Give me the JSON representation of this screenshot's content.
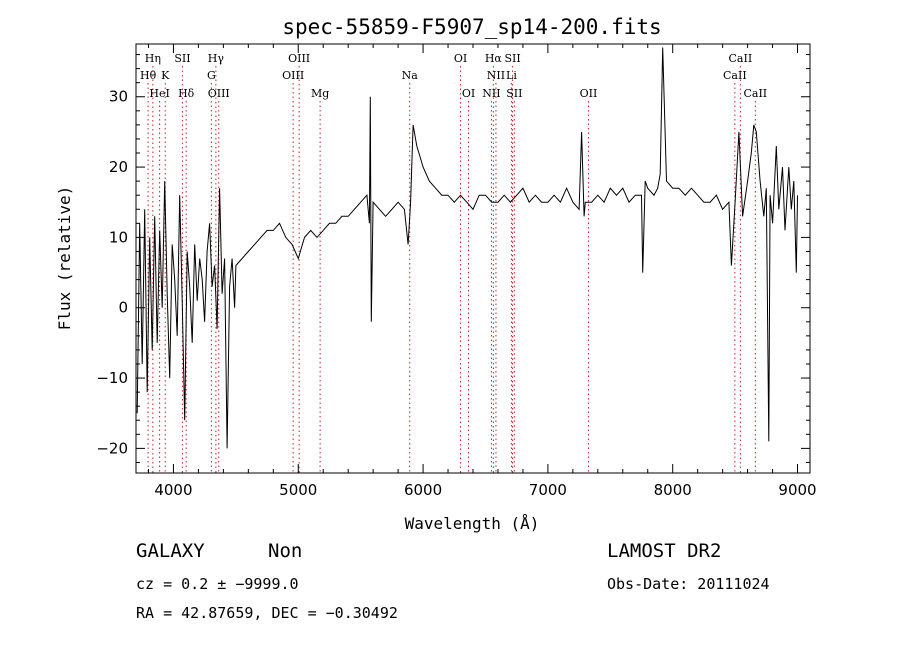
{
  "chart_data": {
    "type": "line",
    "title": "spec-55859-F5907_sp14-200.fits",
    "xlabel": "Wavelength (Å)",
    "ylabel": "Flux (relative)",
    "xlim": [
      3700,
      9100
    ],
    "ylim": [
      -23.5,
      37.5
    ],
    "xticks": [
      "4000",
      "5000",
      "6000",
      "7000",
      "8000",
      "9000"
    ],
    "yticks": [
      "−20",
      "−10",
      "0",
      "10",
      "20",
      "30"
    ],
    "grid": false,
    "line_color": "#000000",
    "marker_color": "#cc2222",
    "spectrum": {
      "x": [
        3710,
        3730,
        3750,
        3770,
        3790,
        3810,
        3830,
        3850,
        3870,
        3890,
        3910,
        3930,
        3950,
        3970,
        3990,
        4010,
        4030,
        4050,
        4070,
        4090,
        4110,
        4130,
        4150,
        4170,
        4190,
        4210,
        4230,
        4250,
        4270,
        4290,
        4310,
        4330,
        4350,
        4370,
        4390,
        4410,
        4430,
        4450,
        4470,
        4490,
        4500,
        4550,
        4600,
        4650,
        4700,
        4750,
        4800,
        4850,
        4900,
        4950,
        5000,
        5050,
        5100,
        5150,
        5200,
        5250,
        5300,
        5350,
        5400,
        5450,
        5500,
        5550,
        5570,
        5577,
        5585,
        5600,
        5650,
        5700,
        5750,
        5800,
        5850,
        5880,
        5900,
        5920,
        5950,
        6000,
        6050,
        6100,
        6150,
        6200,
        6250,
        6300,
        6350,
        6400,
        6450,
        6500,
        6550,
        6600,
        6650,
        6700,
        6750,
        6800,
        6850,
        6900,
        6950,
        7000,
        7050,
        7100,
        7150,
        7200,
        7250,
        7270,
        7290,
        7300,
        7350,
        7400,
        7450,
        7500,
        7550,
        7600,
        7650,
        7700,
        7750,
        7760,
        7780,
        7800,
        7850,
        7880,
        7900,
        7920,
        7950,
        8000,
        8050,
        8100,
        8150,
        8200,
        8250,
        8300,
        8350,
        8400,
        8450,
        8470,
        8500,
        8530,
        8560,
        8600,
        8630,
        8650,
        8670,
        8700,
        8730,
        8750,
        8770,
        8780,
        8800,
        8830,
        8850,
        8880,
        8900,
        8930,
        8950,
        8970,
        8990,
        9000
      ],
      "y": [
        -15,
        12,
        -8,
        14,
        -12,
        10,
        -6,
        13,
        -5,
        11,
        0,
        18,
        2,
        -10,
        9,
        4,
        -4,
        16,
        1,
        -16,
        8,
        3,
        -5,
        9,
        1,
        7,
        4,
        -2,
        8,
        12,
        3,
        6,
        -3,
        17,
        2,
        7,
        -20,
        3,
        7,
        0,
        6,
        7,
        8,
        9,
        10,
        11,
        11,
        12,
        10,
        9,
        7,
        10,
        11,
        10,
        11,
        12,
        12,
        13,
        13,
        14,
        15,
        16,
        12,
        30,
        -2,
        15,
        14,
        13,
        14,
        15,
        14,
        9,
        15,
        26,
        23,
        20,
        18,
        17,
        16,
        16,
        15,
        16,
        15,
        14,
        16,
        16,
        15,
        15,
        16,
        15,
        16,
        17,
        15,
        16,
        15,
        15,
        16,
        15,
        17,
        15,
        14,
        25,
        13,
        15,
        15,
        16,
        15,
        17,
        16,
        17,
        15,
        16,
        16,
        5,
        18,
        17,
        16,
        17,
        19,
        37,
        18,
        17,
        17,
        16,
        17,
        16,
        15,
        15,
        16,
        14,
        15,
        6,
        15,
        25,
        13,
        18,
        22,
        26,
        25,
        18,
        13,
        17,
        -19,
        16,
        12,
        23,
        14,
        20,
        11,
        20,
        14,
        18,
        5,
        16
      ]
    },
    "line_markers": [
      {
        "name": "Hη",
        "wavelength": 3835,
        "row": 0
      },
      {
        "name": "Hθ",
        "wavelength": 3797,
        "row": 1
      },
      {
        "name": "HeI",
        "wavelength": 3889,
        "row": 2
      },
      {
        "name": "K",
        "wavelength": 3934,
        "row": 1
      },
      {
        "name": "SII",
        "wavelength": 4072,
        "row": 0
      },
      {
        "name": "Hδ",
        "wavelength": 4102,
        "row": 2
      },
      {
        "name": "Hγ",
        "wavelength": 4340,
        "row": 0
      },
      {
        "name": "G",
        "wavelength": 4304,
        "row": 1
      },
      {
        "name": "OIII",
        "wavelength": 4363,
        "row": 2
      },
      {
        "name": "OIII",
        "wavelength": 5007,
        "row": 0
      },
      {
        "name": "OIII",
        "wavelength": 4959,
        "row": 1
      },
      {
        "name": "Mg",
        "wavelength": 5175,
        "row": 2
      },
      {
        "name": "Na",
        "wavelength": 5893,
        "row": 1
      },
      {
        "name": "OI",
        "wavelength": 6300,
        "row": 0
      },
      {
        "name": "OI",
        "wavelength": 6364,
        "row": 2
      },
      {
        "name": "Hα",
        "wavelength": 6563,
        "row": 0
      },
      {
        "name": "SII",
        "wavelength": 6717,
        "row": 0
      },
      {
        "name": "NII",
        "wavelength": 6584,
        "row": 1
      },
      {
        "name": "Li",
        "wavelength": 6708,
        "row": 1
      },
      {
        "name": "NII",
        "wavelength": 6548,
        "row": 2
      },
      {
        "name": "SII",
        "wavelength": 6731,
        "row": 2
      },
      {
        "name": "OII",
        "wavelength": 7325,
        "row": 2
      },
      {
        "name": "CaII",
        "wavelength": 8542,
        "row": 0
      },
      {
        "name": "CaII",
        "wavelength": 8498,
        "row": 1
      },
      {
        "name": "CaII",
        "wavelength": 8662,
        "row": 2
      }
    ]
  },
  "info": {
    "object_class": "GALAXY",
    "subclass": "Non",
    "survey": "LAMOST DR2",
    "redshift": "cz = 0.2 ± −9999.0",
    "obs_date": "Obs-Date: 20111024",
    "coords": "RA =  42.87659, DEC =  −0.30492"
  }
}
